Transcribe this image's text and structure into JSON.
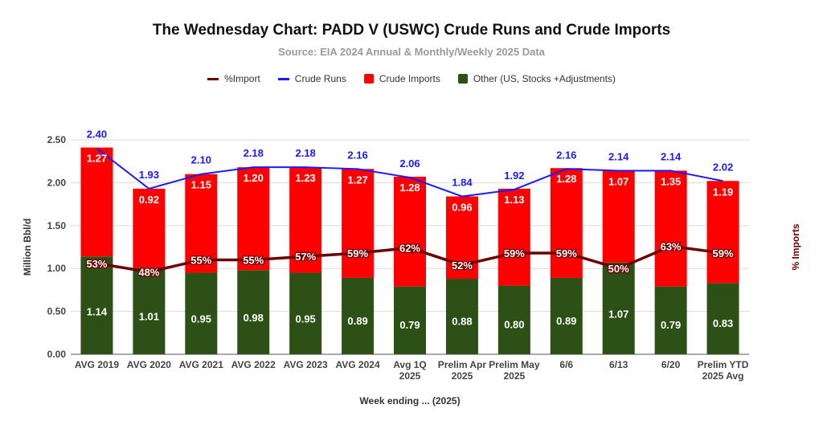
{
  "chart_data": {
    "type": "bar",
    "title": "The Wednesday Chart: PADD V (USWC) Crude Runs and Crude Imports",
    "subtitle": "Source: EIA 2024 Annual & Monthly/Weekly 2025 Data",
    "xlabel": "Week ending ... (2025)",
    "ylabel": "Million Bbl/d",
    "y2label": "% Imports",
    "ylim": [
      0,
      2.5
    ],
    "yticks": [
      "0.00",
      "0.50",
      "1.00",
      "1.50",
      "2.00",
      "2.50"
    ],
    "grid": true,
    "legend_position": "top",
    "categories": [
      [
        "AVG 2019"
      ],
      [
        "AVG 2020"
      ],
      [
        "AVG 2021"
      ],
      [
        "AVG 2022"
      ],
      [
        "AVG 2023"
      ],
      [
        "AVG 2024"
      ],
      [
        "Avg 1Q",
        "2025"
      ],
      [
        "Prelim Apr",
        "2025"
      ],
      [
        "Prelim May",
        "2025"
      ],
      [
        "6/6"
      ],
      [
        "6/13"
      ],
      [
        "6/20"
      ],
      [
        "Prelim YTD",
        "2025 Avg"
      ]
    ],
    "series": [
      {
        "name": "%Import",
        "kind": "line",
        "color": "#6b0000",
        "values": [
          53,
          48,
          55,
          55,
          57,
          59,
          62,
          52,
          59,
          59,
          50,
          63,
          59
        ],
        "labels": [
          "53%",
          "48%",
          "55%",
          "55%",
          "57%",
          "59%",
          "62%",
          "52%",
          "59%",
          "59%",
          "50%",
          "63%",
          "59%"
        ]
      },
      {
        "name": "Crude Runs",
        "kind": "line",
        "color": "#1a1aff",
        "values": [
          2.4,
          1.93,
          2.1,
          2.18,
          2.18,
          2.16,
          2.06,
          1.84,
          1.92,
          2.16,
          2.14,
          2.14,
          2.02
        ],
        "labels": [
          "2.40",
          "1.93",
          "2.10",
          "2.18",
          "2.18",
          "2.16",
          "2.06",
          "1.84",
          "1.92",
          "2.16",
          "2.14",
          "2.14",
          "2.02"
        ]
      },
      {
        "name": "Crude Imports",
        "kind": "bar",
        "color": "#ff0000",
        "values": [
          1.27,
          0.92,
          1.15,
          1.2,
          1.23,
          1.27,
          1.28,
          0.96,
          1.13,
          1.28,
          1.07,
          1.35,
          1.19
        ],
        "labels": [
          "1.27",
          "0.92",
          "1.15",
          "1.20",
          "1.23",
          "1.27",
          "1.28",
          "0.96",
          "1.13",
          "1.28",
          "1.07",
          "1.35",
          "1.19"
        ]
      },
      {
        "name": "Other (US, Stocks +Adjustments)",
        "kind": "bar",
        "color": "#2d5016",
        "values": [
          1.14,
          1.01,
          0.95,
          0.98,
          0.95,
          0.89,
          0.79,
          0.88,
          0.8,
          0.89,
          1.07,
          0.79,
          0.83
        ],
        "labels": [
          "1.14",
          "1.01",
          "0.95",
          "0.98",
          "0.95",
          "0.89",
          "0.79",
          "0.88",
          "0.80",
          "0.89",
          "1.07",
          "0.79",
          "0.83"
        ]
      }
    ]
  }
}
